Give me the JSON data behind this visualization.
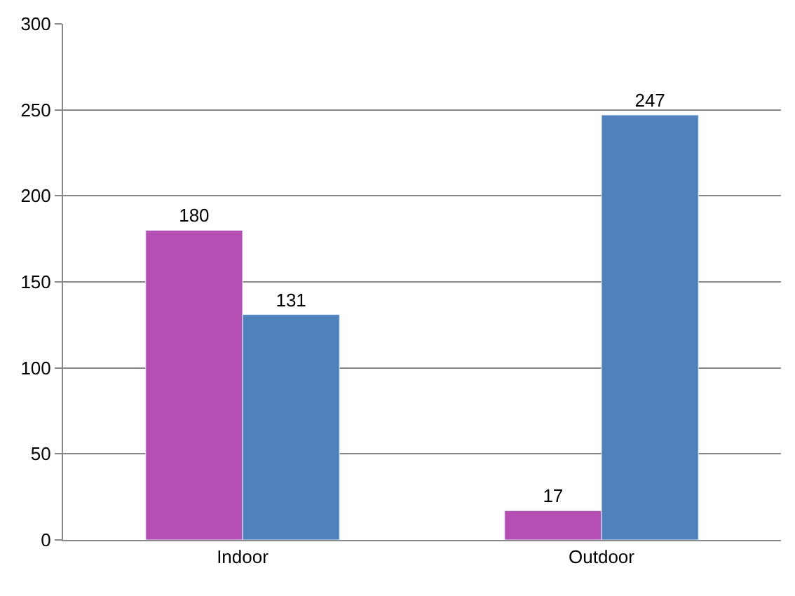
{
  "chart_data": {
    "type": "bar",
    "categories": [
      "Indoor",
      "Outdoor"
    ],
    "series": [
      {
        "color": "#b64fb4",
        "values": [
          180,
          17
        ]
      },
      {
        "color": "#4f81bd",
        "values": [
          131,
          247
        ]
      }
    ],
    "ylim": [
      0,
      300
    ],
    "yticks": [
      0,
      50,
      100,
      150,
      200,
      250,
      300
    ],
    "grid": "y",
    "data_labels": true,
    "legend": false
  }
}
